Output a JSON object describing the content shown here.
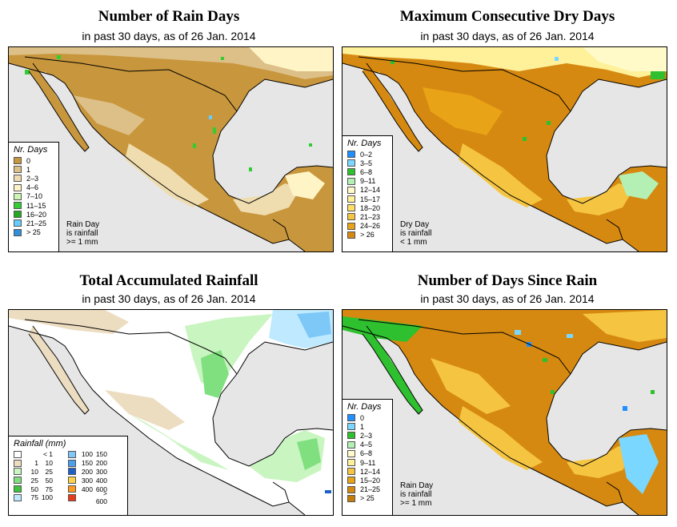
{
  "panels": {
    "rain_days": {
      "title": "Number of Rain Days",
      "subtitle": "in past 30 days, as of  26 Jan. 2014",
      "legend_title": "Nr. Days",
      "legend": [
        {
          "label": "0",
          "color": "#c8963c"
        },
        {
          "label": "1",
          "color": "#ddbf88"
        },
        {
          "label": "2–3",
          "color": "#efddb0"
        },
        {
          "label": "4–6",
          "color": "#fff4c6"
        },
        {
          "label": "7–10",
          "color": "#ccf5b4"
        },
        {
          "label": "11–15",
          "color": "#33cc33"
        },
        {
          "label": "16–20",
          "color": "#22aa22"
        },
        {
          "label": "21–25",
          "color": "#66ccff"
        },
        {
          "label": "> 25",
          "color": "#2f8fd8"
        }
      ],
      "note": "Rain Day\nis rainfall\n>= 1 mm"
    },
    "dry_days": {
      "title": "Maximum Consecutive Dry Days",
      "subtitle": "in past 30 days, as of  26 Jan. 2014",
      "legend_title": "Nr. Days",
      "legend": [
        {
          "label": "0–2",
          "color": "#1e90ff"
        },
        {
          "label": "3–5",
          "color": "#7ad7ff"
        },
        {
          "label": "6–8",
          "color": "#2ec02e"
        },
        {
          "label": "9–11",
          "color": "#b4f0b4"
        },
        {
          "label": "12–14",
          "color": "#fffac8"
        },
        {
          "label": "15–17",
          "color": "#fff09a"
        },
        {
          "label": "18–20",
          "color": "#ffdf66"
        },
        {
          "label": "21–23",
          "color": "#f5c542"
        },
        {
          "label": "24–26",
          "color": "#e8a317"
        },
        {
          "label": "> 26",
          "color": "#d68910"
        }
      ],
      "note": "Dry Day\nis rainfall\n< 1 mm"
    },
    "total_rain": {
      "title": "Total Accumulated Rainfall",
      "subtitle": "in past 30 days, as of  26 Jan. 2014",
      "legend_title": "Rainfall (mm)",
      "legend_left": [
        {
          "lo": "",
          "hi": "< 1",
          "color": "#ffffff"
        },
        {
          "lo": "1",
          "hi": "10",
          "color": "#ecdcc0"
        },
        {
          "lo": "10",
          "hi": "25",
          "color": "#c9f5c0"
        },
        {
          "lo": "25",
          "hi": "50",
          "color": "#80e080"
        },
        {
          "lo": "50",
          "hi": "75",
          "color": "#3cc43c"
        },
        {
          "lo": "75",
          "hi": "100",
          "color": "#bfe9ff"
        }
      ],
      "legend_right": [
        {
          "lo": "100",
          "hi": "150",
          "color": "#7ec8f8"
        },
        {
          "lo": "150",
          "hi": "200",
          "color": "#4a9ef0"
        },
        {
          "lo": "200",
          "hi": "300",
          "color": "#1f5fc8"
        },
        {
          "lo": "300",
          "hi": "400",
          "color": "#ffd24a"
        },
        {
          "lo": "400",
          "hi": "600",
          "color": "#ff9a1e"
        },
        {
          "lo": "",
          "hi": "> 600",
          "color": "#e83a1a"
        }
      ]
    },
    "since_rain": {
      "title": "Number of Days Since Rain",
      "subtitle": "in past 30 days, as of  26 Jan. 2014",
      "legend_title": "Nr. Days",
      "legend": [
        {
          "label": "0",
          "color": "#1e90ff"
        },
        {
          "label": "1",
          "color": "#7ad7ff"
        },
        {
          "label": "2–3",
          "color": "#2ec02e"
        },
        {
          "label": "4–5",
          "color": "#b4f0b4"
        },
        {
          "label": "6–8",
          "color": "#fffac8"
        },
        {
          "label": "9–11",
          "color": "#fff09a"
        },
        {
          "label": "12–14",
          "color": "#f5c542"
        },
        {
          "label": "15–20",
          "color": "#e8a317"
        },
        {
          "label": "21–25",
          "color": "#d68910"
        },
        {
          "label": "> 25",
          "color": "#c47e08"
        }
      ],
      "note": "Rain Day\nis rainfall\n>= 1 mm"
    }
  },
  "colors": {
    "ocean": "#e6e6e6",
    "rain_base": "#c8963c",
    "dry_base": "#d68910",
    "total_base": "#ffffff",
    "since_base": "#d68910"
  }
}
